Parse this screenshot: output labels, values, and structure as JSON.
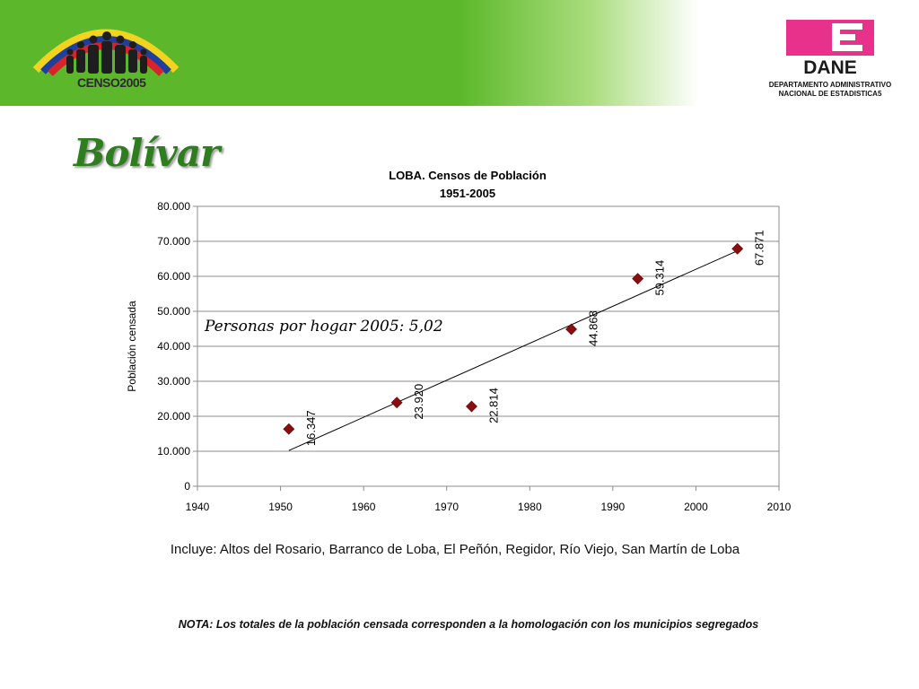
{
  "header": {
    "censo_logo_text": "CENSO2005",
    "dane_logo_text": "DANE",
    "dane_caption_line1": "DEPARTAMENTO ADMINISTRATIVO",
    "dane_caption_line2": "NACIONAL DE ESTADISTICA5"
  },
  "page_title": "Bolívar",
  "chart_data": {
    "type": "scatter",
    "title": "LOBA.  Censos de Población",
    "subtitle": "1951-2005",
    "xlabel": "",
    "ylabel": "Población censada",
    "xlim": [
      1940,
      2010
    ],
    "ylim": [
      0,
      80000
    ],
    "x_ticks": [
      1940,
      1950,
      1960,
      1970,
      1980,
      1990,
      2000,
      2010
    ],
    "y_ticks": [
      0,
      10000,
      20000,
      30000,
      40000,
      50000,
      60000,
      70000,
      80000
    ],
    "y_tick_labels": [
      "0",
      "10.000",
      "20.000",
      "30.000",
      "40.000",
      "50.000",
      "60.000",
      "70.000",
      "80.000"
    ],
    "points": [
      {
        "x": 1951,
        "y": 16347,
        "label": "16.347"
      },
      {
        "x": 1964,
        "y": 23920,
        "label": "23.920"
      },
      {
        "x": 1973,
        "y": 22814,
        "label": "22.814"
      },
      {
        "x": 1985,
        "y": 44868,
        "label": "44.868"
      },
      {
        "x": 1993,
        "y": 59314,
        "label": "59.314"
      },
      {
        "x": 2005,
        "y": 67871,
        "label": "67.871"
      }
    ],
    "trendline": {
      "x": [
        1951,
        2005
      ],
      "y": [
        10200,
        67300
      ]
    },
    "marker_color": "#8b0d0d",
    "grid": true,
    "annotation": "Personas por hogar 2005: 5,02"
  },
  "notes": {
    "includes": "Incluye: Altos del Rosario, Barranco de Loba, El Peñón, Regidor, Río Viejo, San Martín de Loba",
    "nota": "NOTA: Los totales de la población censada corresponden a la homologación con los municipios segregados"
  }
}
